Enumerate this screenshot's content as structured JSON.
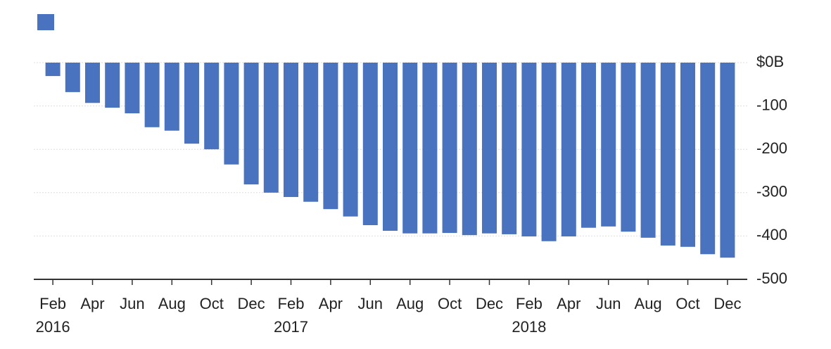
{
  "chart_data": {
    "type": "bar",
    "categories": [
      "Feb",
      null,
      "Apr",
      null,
      "Jun",
      null,
      "Aug",
      null,
      "Oct",
      null,
      "Dec",
      null,
      "Feb",
      null,
      "Apr",
      null,
      "Jun",
      null,
      "Aug",
      null,
      "Oct",
      null,
      "Dec",
      null,
      "Feb",
      null,
      "Apr",
      null,
      "Jun",
      null,
      "Aug",
      null,
      "Oct",
      null,
      "Dec"
    ],
    "year_labels": [
      "2016",
      null,
      null,
      null,
      null,
      null,
      null,
      null,
      null,
      null,
      null,
      null,
      "2017",
      null,
      null,
      null,
      null,
      null,
      null,
      null,
      null,
      null,
      null,
      null,
      "2018",
      null,
      null,
      null,
      null,
      null,
      null,
      null,
      null,
      null,
      null
    ],
    "values": [
      -31,
      -68,
      -93,
      -104,
      -117,
      -149,
      -157,
      -187,
      -200,
      -235,
      -281,
      -300,
      -310,
      -321,
      -338,
      -355,
      -375,
      -388,
      -394,
      -394,
      -393,
      -398,
      -394,
      -396,
      -401,
      -412,
      -401,
      -381,
      -378,
      -390,
      -404,
      -422,
      -425,
      -442,
      -450
    ],
    "color": "#4a73bf",
    "legend": true,
    "ylim": [
      -500,
      0
    ],
    "yticks": [
      {
        "value": 0,
        "label": "$0B"
      },
      -100,
      -200,
      -300,
      -400,
      -500
    ],
    "grid": true
  }
}
